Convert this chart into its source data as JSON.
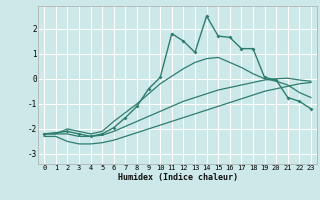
{
  "xlabel": "Humidex (Indice chaleur)",
  "bg_color": "#cce8e8",
  "grid_color": "#ffffff",
  "line_color": "#2e7d6e",
  "xlim": [
    -0.5,
    23.5
  ],
  "ylim": [
    -3.4,
    2.9
  ],
  "xticks": [
    0,
    1,
    2,
    3,
    4,
    5,
    6,
    7,
    8,
    9,
    10,
    11,
    12,
    13,
    14,
    15,
    16,
    17,
    18,
    19,
    20,
    21,
    22,
    23
  ],
  "yticks": [
    -3,
    -2,
    -1,
    0,
    1,
    2
  ],
  "series": [
    {
      "x": [
        0,
        1,
        2,
        3,
        4,
        5,
        6,
        7,
        8,
        9,
        10,
        11,
        12,
        13,
        14,
        15,
        16,
        17,
        18,
        19,
        20,
        21,
        22,
        23
      ],
      "y": [
        -2.3,
        -2.3,
        -2.5,
        -2.6,
        -2.6,
        -2.55,
        -2.45,
        -2.3,
        -2.15,
        -2.0,
        -1.85,
        -1.7,
        -1.55,
        -1.4,
        -1.25,
        -1.1,
        -0.95,
        -0.8,
        -0.65,
        -0.5,
        -0.4,
        -0.3,
        -0.2,
        -0.15
      ],
      "marker": false,
      "lw": 0.9
    },
    {
      "x": [
        0,
        1,
        2,
        3,
        4,
        5,
        6,
        7,
        8,
        9,
        10,
        11,
        12,
        13,
        14,
        15,
        16,
        17,
        18,
        19,
        20,
        21,
        22,
        23
      ],
      "y": [
        -2.2,
        -2.2,
        -2.2,
        -2.3,
        -2.3,
        -2.25,
        -2.1,
        -1.9,
        -1.7,
        -1.5,
        -1.3,
        -1.1,
        -0.9,
        -0.75,
        -0.6,
        -0.45,
        -0.35,
        -0.25,
        -0.15,
        -0.05,
        0.0,
        0.02,
        -0.05,
        -0.1
      ],
      "marker": false,
      "lw": 0.9
    },
    {
      "x": [
        0,
        1,
        2,
        3,
        4,
        5,
        6,
        7,
        8,
        9,
        10,
        11,
        12,
        13,
        14,
        15,
        16,
        17,
        18,
        19,
        20,
        21,
        22,
        23
      ],
      "y": [
        -2.2,
        -2.2,
        -2.0,
        -2.1,
        -2.2,
        -2.1,
        -1.7,
        -1.35,
        -1.0,
        -0.6,
        -0.2,
        0.1,
        0.4,
        0.65,
        0.8,
        0.85,
        0.65,
        0.45,
        0.2,
        0.0,
        -0.1,
        -0.25,
        -0.55,
        -0.75
      ],
      "marker": false,
      "lw": 0.9
    },
    {
      "x": [
        0,
        2,
        3,
        4,
        5,
        6,
        7,
        8,
        9,
        10,
        11,
        12,
        13,
        14,
        15,
        16,
        17,
        18,
        19,
        20,
        21,
        22,
        23
      ],
      "y": [
        -2.2,
        -2.1,
        -2.2,
        -2.3,
        -2.2,
        -1.95,
        -1.55,
        -1.1,
        -0.4,
        0.05,
        1.8,
        1.5,
        1.05,
        2.5,
        1.7,
        1.65,
        1.2,
        1.2,
        0.05,
        -0.05,
        -0.75,
        -0.9,
        -1.2
      ],
      "marker": true,
      "lw": 1.0
    }
  ]
}
